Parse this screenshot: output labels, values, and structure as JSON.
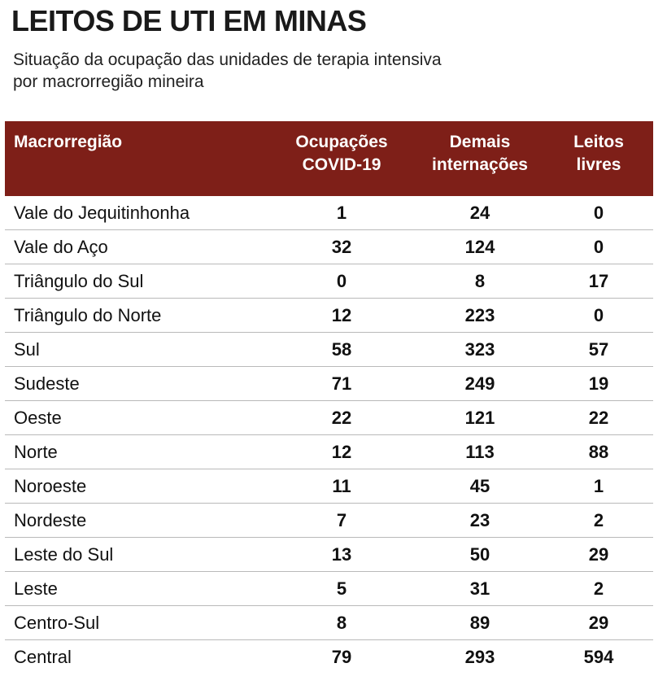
{
  "title": "LEITOS DE UTI EM MINAS",
  "subtitle_line1": "Situação da ocupação das unidades de terapia intensiva",
  "subtitle_line2": "por macrorregião mineira",
  "colors": {
    "header_bg": "#7e1f18",
    "header_text": "#ffffff",
    "row_divider": "#b9b9b9"
  },
  "chart_data": {
    "type": "table",
    "title": "LEITOS DE UTI EM MINAS",
    "subtitle": "Situação da ocupação das unidades de terapia intensiva por macrorregião mineira",
    "columns": [
      {
        "line1": "Macrorregião",
        "line2": ""
      },
      {
        "line1": "Ocupações",
        "line2": "COVID-19"
      },
      {
        "line1": "Demais",
        "line2": "internações"
      },
      {
        "line1": "Leitos",
        "line2": "livres"
      }
    ],
    "rows": [
      [
        "Vale do Jequitinhonha",
        "1",
        "24",
        "0"
      ],
      [
        "Vale do Aço",
        "32",
        "124",
        "0"
      ],
      [
        "Triângulo do Sul",
        "0",
        "8",
        "17"
      ],
      [
        "Triângulo do Norte",
        "12",
        "223",
        "0"
      ],
      [
        "Sul",
        "58",
        "323",
        "57"
      ],
      [
        "Sudeste",
        "71",
        "249",
        "19"
      ],
      [
        "Oeste",
        "22",
        "121",
        "22"
      ],
      [
        "Norte",
        "12",
        "113",
        "88"
      ],
      [
        "Noroeste",
        "11",
        "45",
        "1"
      ],
      [
        "Nordeste",
        "7",
        "23",
        "2"
      ],
      [
        "Leste do Sul",
        "13",
        "50",
        "29"
      ],
      [
        "Leste",
        "5",
        "31",
        "2"
      ],
      [
        "Centro-Sul",
        "8",
        "89",
        "29"
      ],
      [
        "Central",
        "79",
        "293",
        "594"
      ]
    ]
  }
}
